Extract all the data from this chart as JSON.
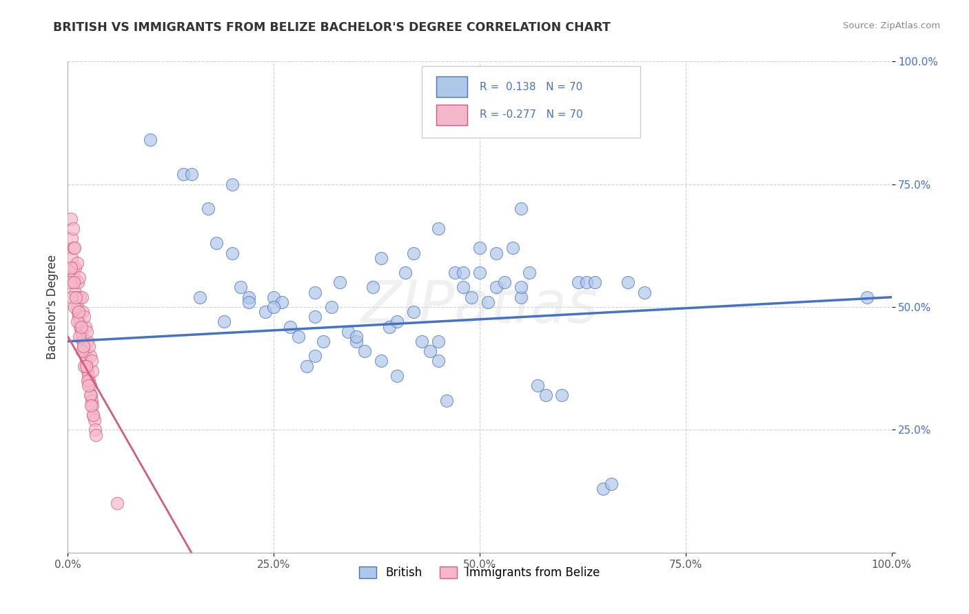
{
  "title": "BRITISH VS IMMIGRANTS FROM BELIZE BACHELOR'S DEGREE CORRELATION CHART",
  "source_text": "Source: ZipAtlas.com",
  "ylabel": "Bachelor's Degree",
  "r_british": 0.138,
  "n_british": 70,
  "r_belize": -0.277,
  "n_belize": 70,
  "xlim": [
    0.0,
    1.0
  ],
  "ylim": [
    0.0,
    1.0
  ],
  "yticks": [
    0.0,
    0.25,
    0.5,
    0.75,
    1.0
  ],
  "ytick_labels": [
    "",
    "25.0%",
    "50.0%",
    "75.0%",
    "100.0%"
  ],
  "xtick_labels": [
    "0.0%",
    "25.0%",
    "50.0%",
    "75.0%",
    "100.0%"
  ],
  "british_color": "#aec6e8",
  "belize_color": "#f5b8cb",
  "british_edge_color": "#4472c4",
  "belize_edge_color": "#d45b7a",
  "british_line_color": "#4472c4",
  "belize_line_color": "#d45b7a",
  "watermark_text": "ZIPatlas",
  "british_x": [
    0.1,
    0.14,
    0.15,
    0.16,
    0.17,
    0.18,
    0.19,
    0.2,
    0.21,
    0.22,
    0.22,
    0.24,
    0.25,
    0.26,
    0.27,
    0.28,
    0.29,
    0.3,
    0.31,
    0.32,
    0.33,
    0.34,
    0.35,
    0.36,
    0.37,
    0.38,
    0.39,
    0.4,
    0.41,
    0.42,
    0.43,
    0.44,
    0.45,
    0.46,
    0.47,
    0.48,
    0.49,
    0.5,
    0.51,
    0.52,
    0.53,
    0.54,
    0.55,
    0.56,
    0.57,
    0.58,
    0.6,
    0.62,
    0.63,
    0.64,
    0.65,
    0.66,
    0.68,
    0.7,
    0.38,
    0.42,
    0.45,
    0.48,
    0.52,
    0.55,
    0.2,
    0.25,
    0.3,
    0.35,
    0.4,
    0.45,
    0.5,
    0.55,
    0.97,
    0.3
  ],
  "british_y": [
    0.84,
    0.77,
    0.77,
    0.52,
    0.7,
    0.63,
    0.47,
    0.61,
    0.54,
    0.52,
    0.51,
    0.49,
    0.52,
    0.51,
    0.46,
    0.44,
    0.38,
    0.4,
    0.43,
    0.5,
    0.55,
    0.45,
    0.43,
    0.41,
    0.54,
    0.39,
    0.46,
    0.36,
    0.57,
    0.49,
    0.43,
    0.41,
    0.39,
    0.31,
    0.57,
    0.54,
    0.52,
    0.57,
    0.51,
    0.54,
    0.55,
    0.62,
    0.7,
    0.57,
    0.34,
    0.32,
    0.32,
    0.55,
    0.55,
    0.55,
    0.13,
    0.14,
    0.55,
    0.53,
    0.6,
    0.61,
    0.66,
    0.57,
    0.61,
    0.52,
    0.75,
    0.5,
    0.48,
    0.44,
    0.47,
    0.43,
    0.62,
    0.54,
    0.52,
    0.53
  ],
  "belize_x": [
    0.005,
    0.006,
    0.007,
    0.008,
    0.009,
    0.01,
    0.011,
    0.012,
    0.013,
    0.014,
    0.015,
    0.016,
    0.017,
    0.018,
    0.019,
    0.02,
    0.021,
    0.022,
    0.023,
    0.024,
    0.025,
    0.026,
    0.027,
    0.028,
    0.029,
    0.03,
    0.031,
    0.032,
    0.033,
    0.034,
    0.005,
    0.007,
    0.009,
    0.012,
    0.015,
    0.018,
    0.021,
    0.024,
    0.027,
    0.03,
    0.004,
    0.006,
    0.008,
    0.011,
    0.014,
    0.017,
    0.02,
    0.023,
    0.026,
    0.029,
    0.003,
    0.005,
    0.008,
    0.011,
    0.014,
    0.017,
    0.02,
    0.024,
    0.027,
    0.031,
    0.004,
    0.007,
    0.01,
    0.013,
    0.016,
    0.019,
    0.022,
    0.025,
    0.028,
    0.06
  ],
  "belize_y": [
    0.6,
    0.58,
    0.56,
    0.55,
    0.53,
    0.52,
    0.5,
    0.49,
    0.48,
    0.47,
    0.46,
    0.45,
    0.44,
    0.43,
    0.42,
    0.41,
    0.4,
    0.39,
    0.38,
    0.37,
    0.36,
    0.35,
    0.34,
    0.32,
    0.31,
    0.3,
    0.28,
    0.27,
    0.25,
    0.24,
    0.64,
    0.62,
    0.58,
    0.55,
    0.52,
    0.49,
    0.46,
    0.43,
    0.4,
    0.37,
    0.68,
    0.66,
    0.62,
    0.59,
    0.56,
    0.52,
    0.48,
    0.45,
    0.42,
    0.39,
    0.55,
    0.52,
    0.5,
    0.47,
    0.44,
    0.41,
    0.38,
    0.35,
    0.32,
    0.28,
    0.58,
    0.55,
    0.52,
    0.49,
    0.46,
    0.42,
    0.38,
    0.34,
    0.3,
    0.1
  ],
  "belize_line_x0": 0.0,
  "belize_line_y0": 0.44,
  "belize_line_x1": 0.15,
  "belize_line_y1": 0.0,
  "british_line_x0": 0.0,
  "british_line_y0": 0.43,
  "british_line_x1": 1.0,
  "british_line_y1": 0.52
}
